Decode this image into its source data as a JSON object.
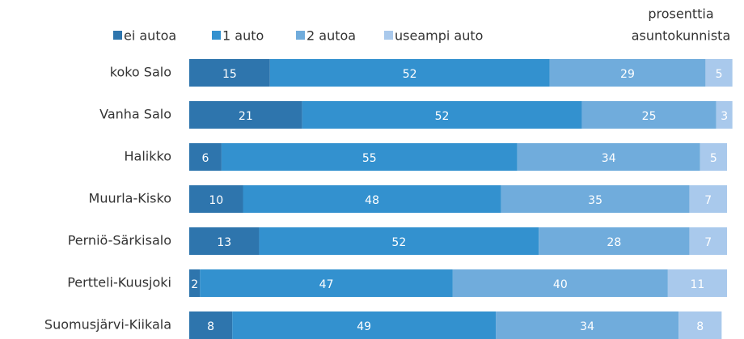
{
  "chart_data": {
    "type": "stacked_bar_horizontal",
    "annotations": [
      "prosenttia",
      "asuntokunnista"
    ],
    "categories": [
      "koko Salo",
      "Vanha Salo",
      "Halikko",
      "Muurla-Kisko",
      "Perniö-Särkisalo",
      "Pertteli-Kuusjoki",
      "Suomusjärvi-Kiikala"
    ],
    "series": [
      {
        "name": "ei autoa",
        "color": "#2e75ad",
        "values": [
          15,
          21,
          6,
          10,
          13,
          2,
          8
        ]
      },
      {
        "name": "1 auto",
        "color": "#3391cf",
        "values": [
          52,
          52,
          55,
          48,
          52,
          47,
          49
        ]
      },
      {
        "name": "2 autoa",
        "color": "#70acdc",
        "values": [
          29,
          25,
          34,
          35,
          28,
          40,
          34
        ]
      },
      {
        "name": "useampi auto",
        "color": "#a9c9ec",
        "values": [
          5,
          3,
          5,
          7,
          7,
          11,
          8
        ]
      }
    ]
  }
}
